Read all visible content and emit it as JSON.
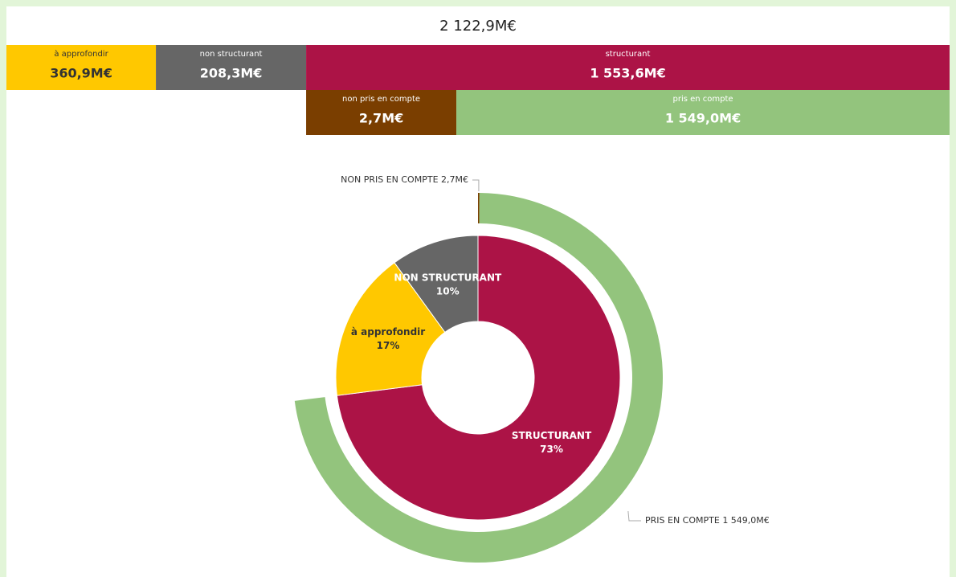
{
  "chart_data": [
    {
      "type": "decomposition",
      "title": "2 122,9M€",
      "categories": [
        "à approfondir",
        "non structurant",
        "structurant"
      ],
      "values": [
        360.9,
        208.3,
        1553.6
      ],
      "value_labels": [
        "360,9M€",
        "208,3M€",
        "1 553,6M€"
      ],
      "colors": [
        "#ffc800",
        "#666666",
        "#ac1346"
      ],
      "children": {
        "parent": 2,
        "categories": [
          "non pris en compte",
          "pris en compte"
        ],
        "values": [
          2.7,
          1549.0
        ],
        "value_labels": [
          "2,7M€",
          "1 549,0M€"
        ],
        "colors": [
          "#7a3e00",
          "#93c47d"
        ]
      }
    },
    {
      "type": "sunburst",
      "inner": {
        "categories": [
          "STRUCTURANT",
          "à approfondir",
          "NON STRUCTURANT"
        ],
        "values": [
          73,
          17,
          10
        ],
        "value_labels": [
          "73%",
          "17%",
          "10%"
        ],
        "colors": [
          "#ac1346",
          "#ffc800",
          "#666666"
        ],
        "label_colors": [
          "#ffffff",
          "#333333",
          "#ffffff"
        ]
      },
      "outer": {
        "parent": 0,
        "categories": [
          "NON PRIS EN COMPTE",
          "PRIS EN COMPTE"
        ],
        "values": [
          2.7,
          1549.0
        ],
        "value_labels": [
          "2,7M€",
          "1 549,0M€"
        ],
        "colors": [
          "#7a3e00",
          "#93c47d"
        ]
      }
    }
  ]
}
